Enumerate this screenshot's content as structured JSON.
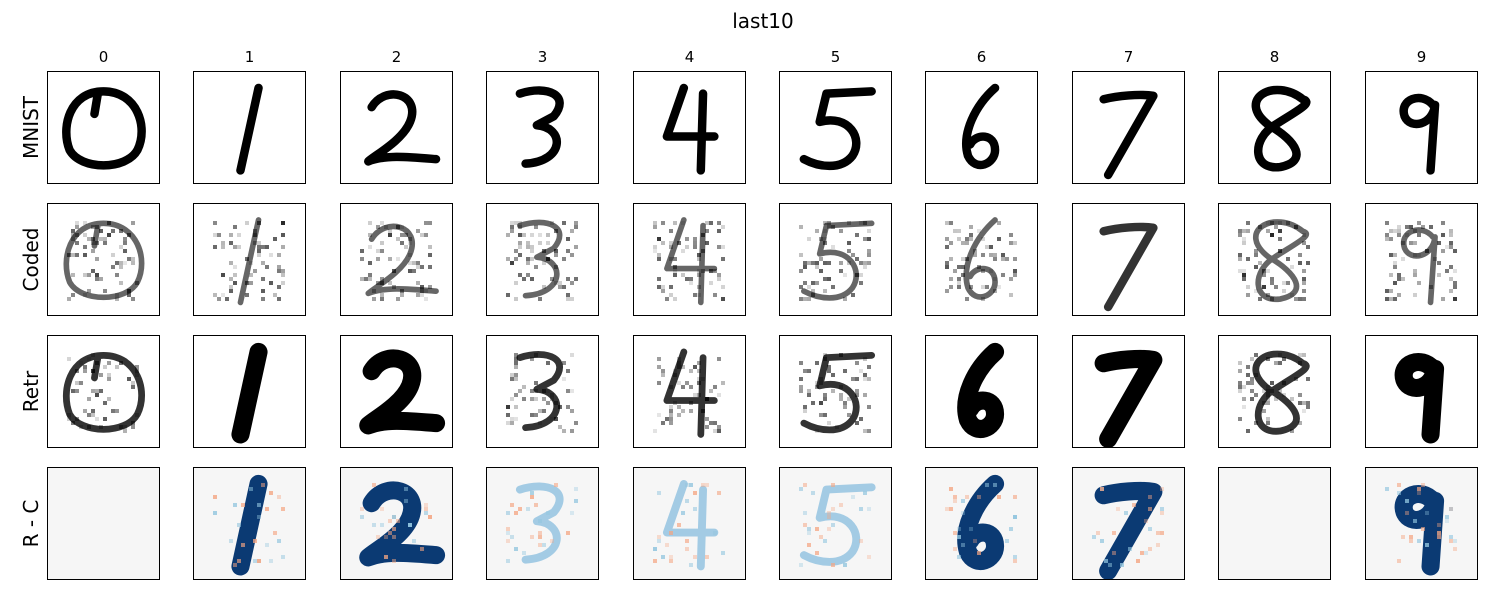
{
  "chart_data": {
    "type": "heatmap",
    "title": "last10",
    "columns": [
      "0",
      "1",
      "2",
      "3",
      "4",
      "5",
      "6",
      "7",
      "8",
      "9"
    ],
    "rows": [
      {
        "label": "MNIST",
        "colormap": "gray_r"
      },
      {
        "label": "Coded",
        "colormap": "gray_r"
      },
      {
        "label": "Retr",
        "colormap": "gray_r"
      },
      {
        "label": "R - C",
        "colormap": "RdBu"
      }
    ],
    "image_grid": "28x28",
    "ticks": false,
    "grid": false,
    "legend": "none"
  }
}
